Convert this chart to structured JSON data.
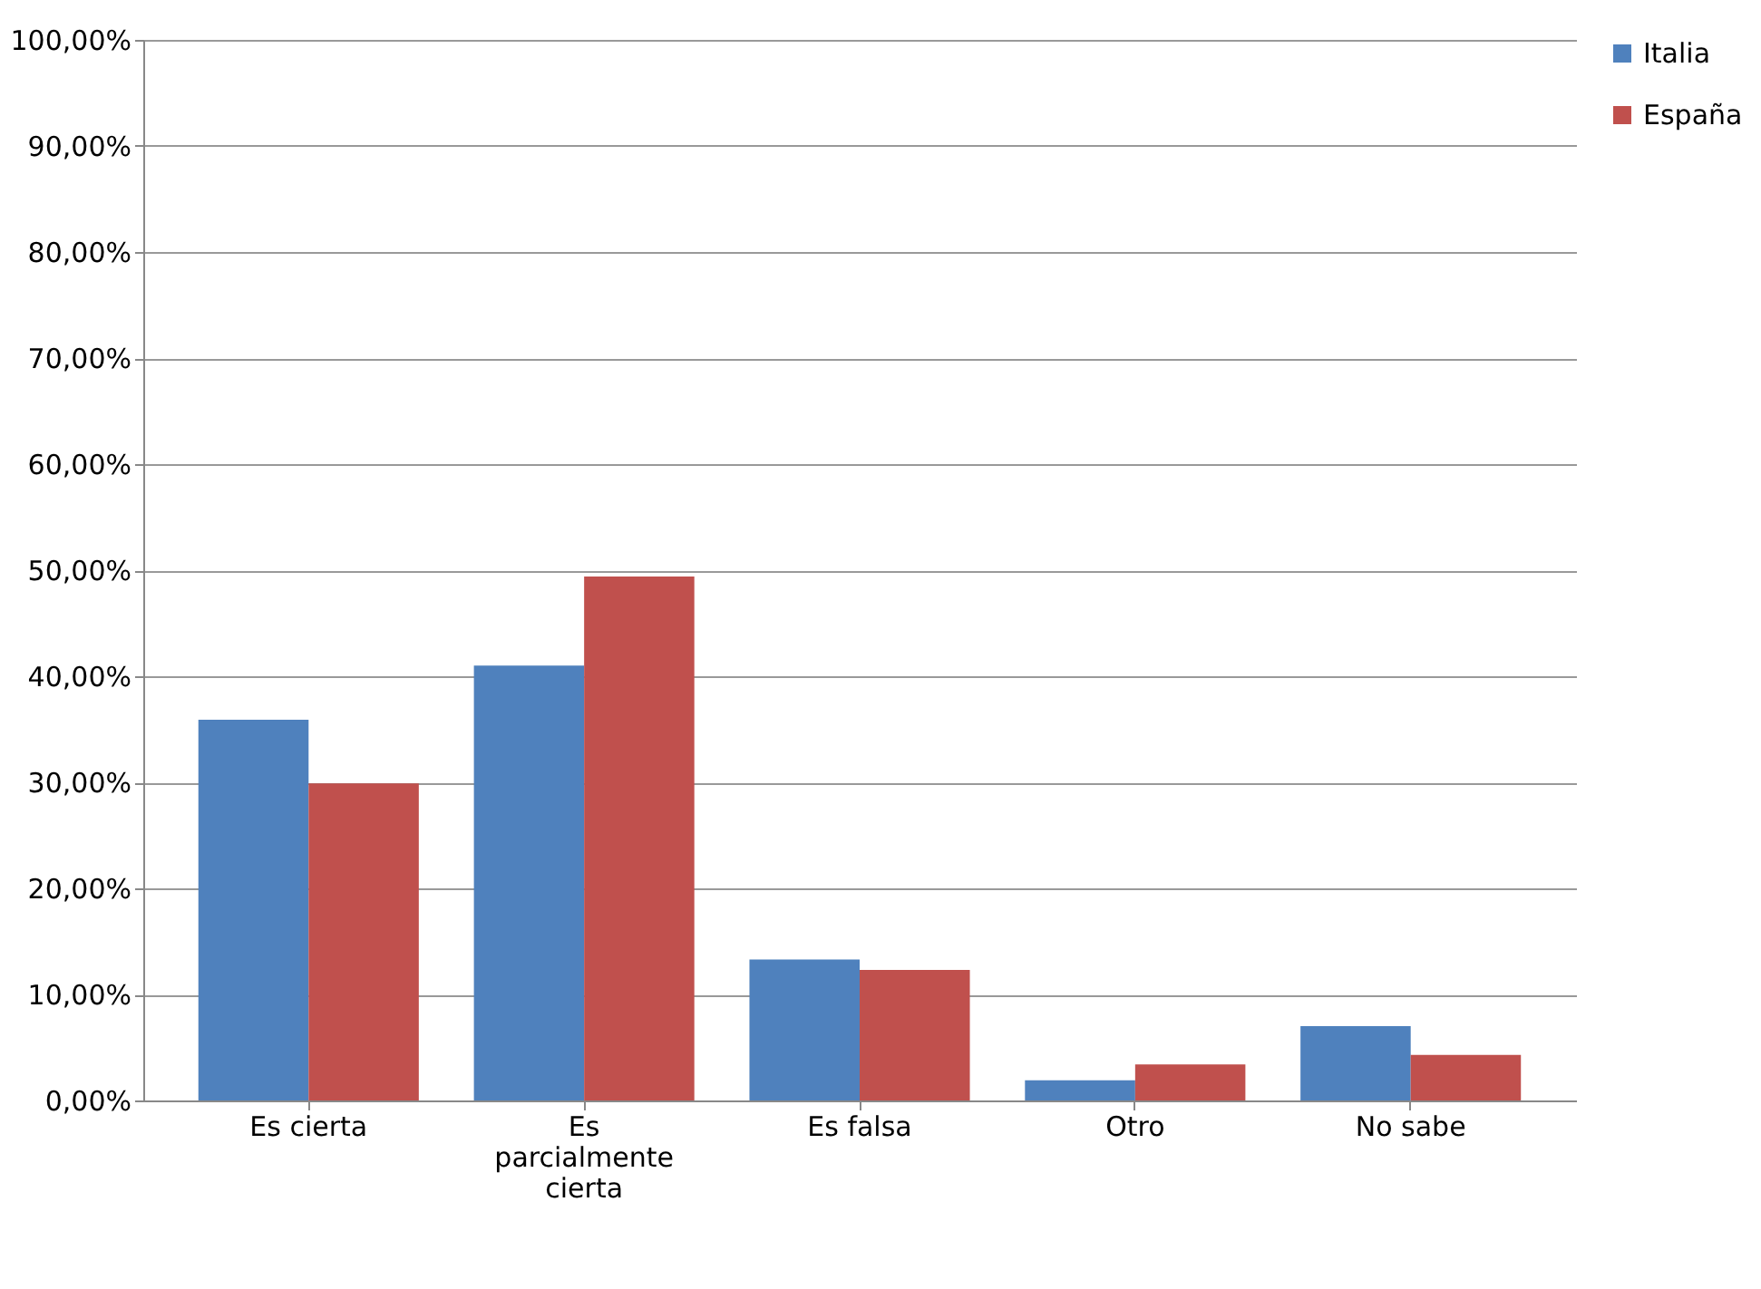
{
  "chart_data": {
    "type": "bar",
    "categories": [
      "Es cierta",
      "Es parcialmente cierta",
      "Es falsa",
      "Otro",
      "No sabe"
    ],
    "series": [
      {
        "name": "Italia",
        "color": "#4f81bd",
        "values": [
          35.9,
          41.0,
          13.3,
          1.9,
          7.0
        ]
      },
      {
        "name": "España",
        "color": "#c0504d",
        "values": [
          29.9,
          49.4,
          12.3,
          3.4,
          4.3
        ]
      }
    ],
    "ylim": [
      0,
      100
    ],
    "yticks": [
      {
        "value": 0,
        "label": "0,00%"
      },
      {
        "value": 10,
        "label": "10,00%"
      },
      {
        "value": 20,
        "label": "20,00%"
      },
      {
        "value": 30,
        "label": "30,00%"
      },
      {
        "value": 40,
        "label": "40,00%"
      },
      {
        "value": 50,
        "label": "50,00%"
      },
      {
        "value": 60,
        "label": "60,00%"
      },
      {
        "value": 70,
        "label": "70,00%"
      },
      {
        "value": 80,
        "label": "80,00%"
      },
      {
        "value": 90,
        "label": "90,00%"
      },
      {
        "value": 100,
        "label": "100,00%"
      }
    ],
    "grid": "y",
    "legend": "right"
  }
}
